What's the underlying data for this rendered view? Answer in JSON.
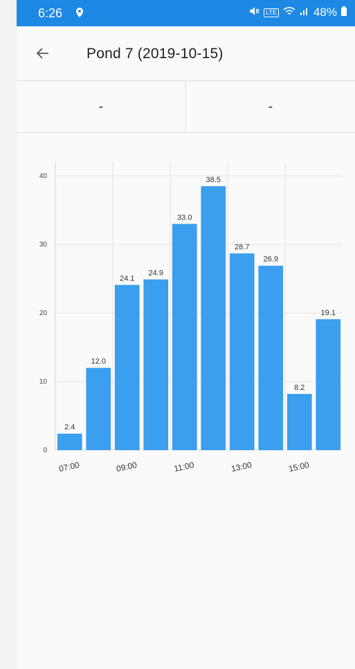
{
  "status_bar": {
    "time": "6:26",
    "network": "LTE",
    "battery": "48%"
  },
  "app_bar": {
    "title": "Pond 7 (2019-10-15)"
  },
  "summary": {
    "left_value": "-",
    "right_value": "-"
  },
  "colors": {
    "accent": "#1e88e5",
    "bar": "#3b9eee"
  },
  "chart_data": {
    "type": "bar",
    "title": "",
    "xlabel": "",
    "ylabel": "",
    "categories": [
      "07:00",
      "08:00",
      "09:00",
      "10:00",
      "11:00",
      "12:00",
      "13:00",
      "14:00",
      "15:00",
      "16:00"
    ],
    "x_tick_labels": [
      "07:00",
      "09:00",
      "11:00",
      "13:00",
      "15:00"
    ],
    "values": [
      2.4,
      12.0,
      24.1,
      24.9,
      33.0,
      38.5,
      28.7,
      26.9,
      8.2,
      19.1
    ],
    "value_labels": [
      "2.4",
      "12.0",
      "24.1",
      "24.9",
      "33.0",
      "38.5",
      "28.7",
      "26.9",
      "8.2",
      "19.1"
    ],
    "y_ticks": [
      "0",
      "10",
      "20",
      "30",
      "40"
    ],
    "ylim": [
      0,
      40
    ],
    "grid": true
  }
}
